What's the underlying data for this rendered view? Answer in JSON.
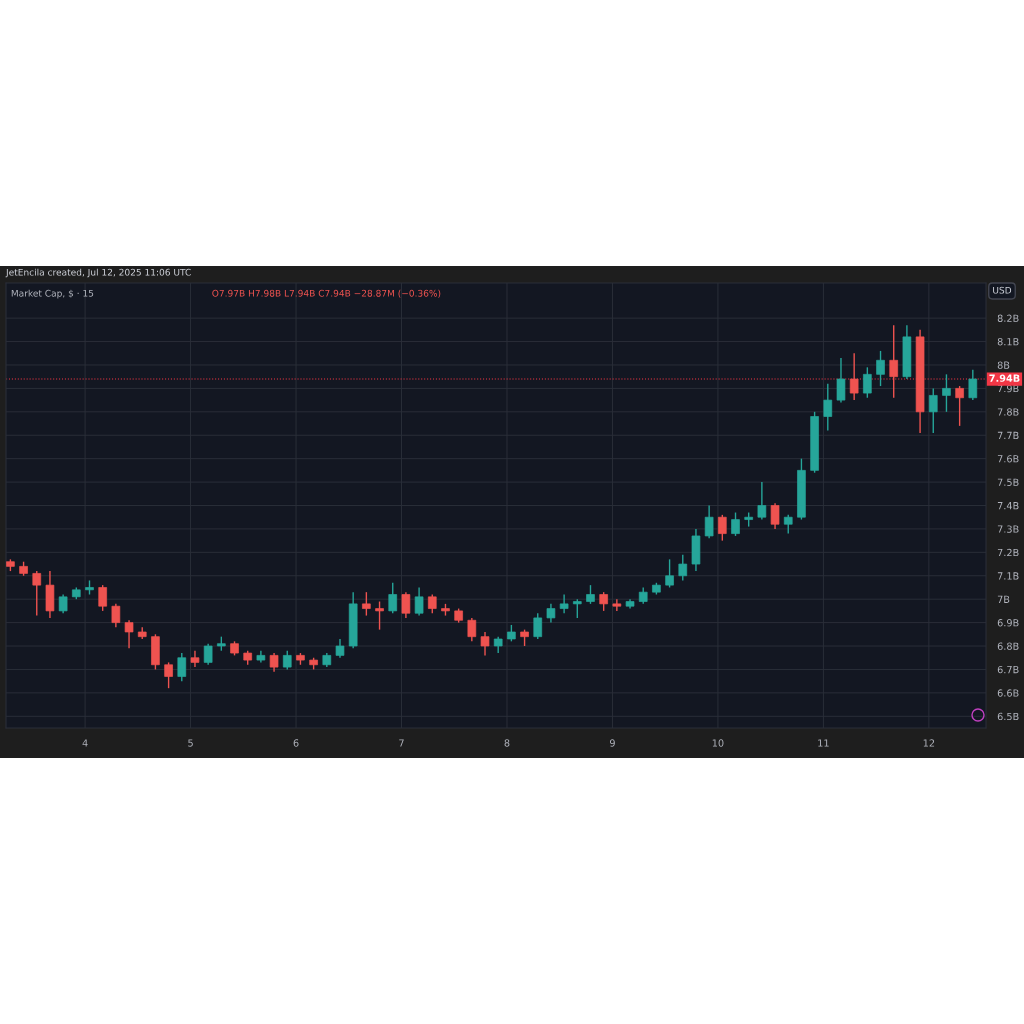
{
  "chart_data": {
    "type": "candlestick",
    "title": "Market Cap, $ · 15",
    "annotations": [
      "JetEncila created, Jul 12, 2025 11:06 UTC",
      "O7.97B H7.98B L7.94B C7.94B −28.87M (−0.36%)",
      "USD"
    ],
    "x": [
      "2025-07-03T07:00",
      "2025-07-03T10:00",
      "2025-07-03T13:00",
      "2025-07-03T16:00",
      "2025-07-03T19:00",
      "2025-07-03T22:00",
      "2025-07-04T01:00",
      "2025-07-04T04:00",
      "2025-07-04T07:00",
      "2025-07-04T10:00",
      "2025-07-04T13:00",
      "2025-07-04T16:00",
      "2025-07-04T19:00",
      "2025-07-04T22:00",
      "2025-07-05T01:00",
      "2025-07-05T04:00",
      "2025-07-05T07:00",
      "2025-07-05T10:00",
      "2025-07-05T13:00",
      "2025-07-05T16:00",
      "2025-07-05T19:00",
      "2025-07-05T22:00",
      "2025-07-06T01:00",
      "2025-07-06T04:00",
      "2025-07-06T07:00",
      "2025-07-06T10:00",
      "2025-07-06T13:00",
      "2025-07-06T16:00",
      "2025-07-06T19:00",
      "2025-07-06T22:00",
      "2025-07-07T01:00",
      "2025-07-07T04:00",
      "2025-07-07T07:00",
      "2025-07-07T10:00",
      "2025-07-07T13:00",
      "2025-07-07T16:00",
      "2025-07-07T19:00",
      "2025-07-07T22:00",
      "2025-07-08T01:00",
      "2025-07-08T04:00",
      "2025-07-08T07:00",
      "2025-07-08T10:00",
      "2025-07-08T13:00",
      "2025-07-08T16:00",
      "2025-07-08T19:00",
      "2025-07-08T22:00",
      "2025-07-09T01:00",
      "2025-07-09T04:00",
      "2025-07-09T07:00",
      "2025-07-09T10:00",
      "2025-07-09T13:00",
      "2025-07-09T16:00",
      "2025-07-09T19:00",
      "2025-07-09T22:00",
      "2025-07-10T01:00",
      "2025-07-10T04:00",
      "2025-07-10T07:00",
      "2025-07-10T10:00",
      "2025-07-10T13:00",
      "2025-07-10T16:00",
      "2025-07-10T19:00",
      "2025-07-10T22:00",
      "2025-07-11T01:00",
      "2025-07-11T04:00",
      "2025-07-11T07:00",
      "2025-07-11T10:00",
      "2025-07-11T13:00",
      "2025-07-11T16:00",
      "2025-07-11T19:00",
      "2025-07-11T22:00",
      "2025-07-12T01:00",
      "2025-07-12T04:00",
      "2025-07-12T07:00",
      "2025-07-12T10:00"
    ],
    "ohlc": [
      [
        7.16,
        7.17,
        7.12,
        7.14
      ],
      [
        7.14,
        7.16,
        7.1,
        7.11
      ],
      [
        7.11,
        7.12,
        6.93,
        7.06
      ],
      [
        7.06,
        7.12,
        6.92,
        6.95
      ],
      [
        6.95,
        7.02,
        6.94,
        7.01
      ],
      [
        7.01,
        7.05,
        7.0,
        7.04
      ],
      [
        7.04,
        7.08,
        7.02,
        7.05
      ],
      [
        7.05,
        7.06,
        6.95,
        6.97
      ],
      [
        6.97,
        6.98,
        6.88,
        6.9
      ],
      [
        6.9,
        6.91,
        6.79,
        6.86
      ],
      [
        6.86,
        6.88,
        6.83,
        6.84
      ],
      [
        6.84,
        6.85,
        6.7,
        6.72
      ],
      [
        6.72,
        6.73,
        6.62,
        6.67
      ],
      [
        6.67,
        6.77,
        6.65,
        6.75
      ],
      [
        6.75,
        6.78,
        6.71,
        6.73
      ],
      [
        6.73,
        6.81,
        6.72,
        6.8
      ],
      [
        6.8,
        6.84,
        6.78,
        6.81
      ],
      [
        6.81,
        6.82,
        6.76,
        6.77
      ],
      [
        6.77,
        6.78,
        6.72,
        6.74
      ],
      [
        6.74,
        6.78,
        6.73,
        6.76
      ],
      [
        6.76,
        6.77,
        6.69,
        6.71
      ],
      [
        6.71,
        6.78,
        6.7,
        6.76
      ],
      [
        6.76,
        6.77,
        6.72,
        6.74
      ],
      [
        6.74,
        6.75,
        6.7,
        6.72
      ],
      [
        6.72,
        6.77,
        6.71,
        6.76
      ],
      [
        6.76,
        6.83,
        6.75,
        6.8
      ],
      [
        6.8,
        7.03,
        6.79,
        6.98
      ],
      [
        6.98,
        7.03,
        6.93,
        6.96
      ],
      [
        6.96,
        6.99,
        6.87,
        6.95
      ],
      [
        6.95,
        7.07,
        6.94,
        7.02
      ],
      [
        7.02,
        7.03,
        6.92,
        6.94
      ],
      [
        6.94,
        7.05,
        6.93,
        7.01
      ],
      [
        7.01,
        7.02,
        6.94,
        6.96
      ],
      [
        6.96,
        6.98,
        6.93,
        6.95
      ],
      [
        6.95,
        6.96,
        6.9,
        6.91
      ],
      [
        6.91,
        6.92,
        6.82,
        6.84
      ],
      [
        6.84,
        6.86,
        6.76,
        6.8
      ],
      [
        6.8,
        6.84,
        6.77,
        6.83
      ],
      [
        6.83,
        6.89,
        6.82,
        6.86
      ],
      [
        6.86,
        6.87,
        6.8,
        6.84
      ],
      [
        6.84,
        6.94,
        6.83,
        6.92
      ],
      [
        6.92,
        6.98,
        6.9,
        6.96
      ],
      [
        6.96,
        7.02,
        6.94,
        6.98
      ],
      [
        6.98,
        7.0,
        6.92,
        6.99
      ],
      [
        6.99,
        7.06,
        6.98,
        7.02
      ],
      [
        7.02,
        7.03,
        6.95,
        6.98
      ],
      [
        6.98,
        7.0,
        6.95,
        6.97
      ],
      [
        6.97,
        7.0,
        6.96,
        6.99
      ],
      [
        6.99,
        7.05,
        6.98,
        7.03
      ],
      [
        7.03,
        7.07,
        7.02,
        7.06
      ],
      [
        7.06,
        7.17,
        7.05,
        7.1
      ],
      [
        7.1,
        7.19,
        7.08,
        7.15
      ],
      [
        7.15,
        7.3,
        7.12,
        7.27
      ],
      [
        7.27,
        7.4,
        7.26,
        7.35
      ],
      [
        7.35,
        7.36,
        7.25,
        7.28
      ],
      [
        7.28,
        7.37,
        7.27,
        7.34
      ],
      [
        7.34,
        7.37,
        7.31,
        7.35
      ],
      [
        7.35,
        7.5,
        7.34,
        7.4
      ],
      [
        7.4,
        7.41,
        7.3,
        7.32
      ],
      [
        7.32,
        7.36,
        7.28,
        7.35
      ],
      [
        7.35,
        7.6,
        7.34,
        7.55
      ],
      [
        7.55,
        7.8,
        7.54,
        7.78
      ],
      [
        7.78,
        7.92,
        7.72,
        7.85
      ],
      [
        7.85,
        8.03,
        7.84,
        7.94
      ],
      [
        7.94,
        8.05,
        7.85,
        7.88
      ],
      [
        7.88,
        7.99,
        7.86,
        7.96
      ],
      [
        7.96,
        8.06,
        7.91,
        8.02
      ],
      [
        8.02,
        8.17,
        7.86,
        7.95
      ],
      [
        7.95,
        8.17,
        7.94,
        8.12
      ],
      [
        8.12,
        8.15,
        7.71,
        7.8
      ],
      [
        7.8,
        7.9,
        7.71,
        7.87
      ],
      [
        7.87,
        7.96,
        7.8,
        7.9
      ],
      [
        7.9,
        7.91,
        7.74,
        7.86
      ],
      [
        7.86,
        7.98,
        7.85,
        7.94
      ]
    ],
    "xlim": [
      "2025-07-03T06:00",
      "2025-07-12T13:00"
    ],
    "xticks": [
      {
        "value": "2025-07-04",
        "label": "4"
      },
      {
        "value": "2025-07-05",
        "label": "5"
      },
      {
        "value": "2025-07-06",
        "label": "6"
      },
      {
        "value": "2025-07-07",
        "label": "7"
      },
      {
        "value": "2025-07-08",
        "label": "8"
      },
      {
        "value": "2025-07-09",
        "label": "9"
      },
      {
        "value": "2025-07-10",
        "label": "10"
      },
      {
        "value": "2025-07-11",
        "label": "11"
      },
      {
        "value": "2025-07-12",
        "label": "12"
      }
    ],
    "ylim": [
      6.45,
      8.35
    ],
    "yticks": [
      {
        "value": 6.5,
        "label": "6.5B"
      },
      {
        "value": 6.6,
        "label": "6.6B"
      },
      {
        "value": 6.7,
        "label": "6.7B"
      },
      {
        "value": 6.8,
        "label": "6.8B"
      },
      {
        "value": 6.9,
        "label": "6.9B"
      },
      {
        "value": 7,
        "label": "7B"
      },
      {
        "value": 7.1,
        "label": "7.1B"
      },
      {
        "value": 7.2,
        "label": "7.2B"
      },
      {
        "value": 7.3,
        "label": "7.3B"
      },
      {
        "value": 7.4,
        "label": "7.4B"
      },
      {
        "value": 7.5,
        "label": "7.5B"
      },
      {
        "value": 7.6,
        "label": "7.6B"
      },
      {
        "value": 7.7,
        "label": "7.7B"
      },
      {
        "value": 7.8,
        "label": "7.8B"
      },
      {
        "value": 7.9,
        "label": "7.9B"
      },
      {
        "value": 8,
        "label": "8B"
      },
      {
        "value": 8.1,
        "label": "8.1B"
      },
      {
        "value": 8.2,
        "label": "8.2B"
      }
    ],
    "grid": true,
    "ref_lines": [
      {
        "axis": "y",
        "value": 7.94,
        "label": "7.94B",
        "color": "#f23645",
        "line_style": "dotted"
      }
    ]
  }
}
